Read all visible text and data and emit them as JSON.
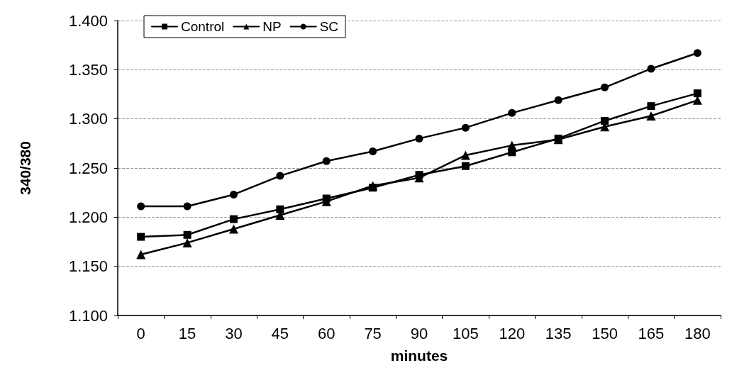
{
  "chart_data": {
    "type": "line",
    "xlabel": "minutes",
    "ylabel": "340/380",
    "categories": [
      "0",
      "15",
      "30",
      "45",
      "60",
      "75",
      "90",
      "105",
      "120",
      "135",
      "150",
      "165",
      "180"
    ],
    "series": [
      {
        "name": "Control",
        "color": "#000000",
        "marker": "square",
        "values": [
          1.18,
          1.182,
          1.198,
          1.208,
          1.219,
          1.23,
          1.243,
          1.252,
          1.266,
          1.28,
          1.298,
          1.313,
          1.326
        ]
      },
      {
        "name": "NP",
        "color": "#000000",
        "marker": "triangle",
        "values": [
          1.162,
          1.174,
          1.188,
          1.202,
          1.216,
          1.232,
          1.24,
          1.263,
          1.273,
          1.279,
          1.292,
          1.303,
          1.319
        ]
      },
      {
        "name": "SC",
        "color": "#000000",
        "marker": "circle",
        "values": [
          1.211,
          1.211,
          1.223,
          1.242,
          1.257,
          1.267,
          1.28,
          1.291,
          1.306,
          1.319,
          1.332,
          1.351,
          1.367
        ]
      }
    ],
    "ylim": [
      1.1,
      1.4
    ],
    "yticks": [
      {
        "value": 1.1,
        "label": "1.100"
      },
      {
        "value": 1.15,
        "label": "1.150"
      },
      {
        "value": 1.2,
        "label": "1.200"
      },
      {
        "value": 1.25,
        "label": "1.250"
      },
      {
        "value": 1.3,
        "label": "1.300"
      },
      {
        "value": 1.35,
        "label": "1.350"
      },
      {
        "value": 1.4,
        "label": "1.400"
      }
    ],
    "grid": "y",
    "legend": "top left",
    "line_style": "solid"
  }
}
